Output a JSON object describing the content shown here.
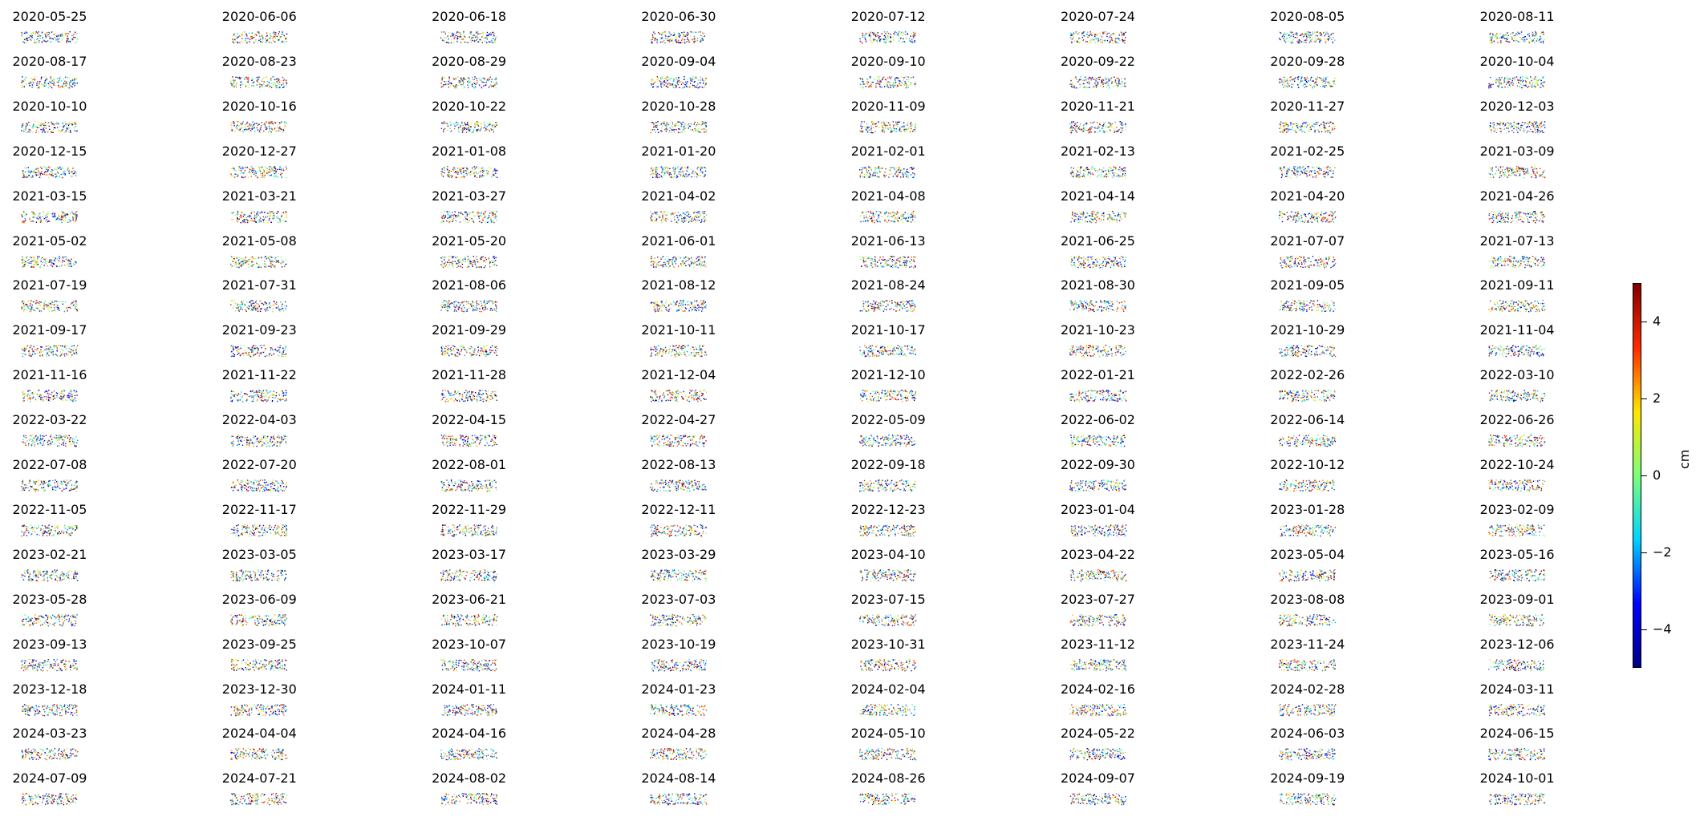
{
  "chart_data": {
    "type": "heatmap",
    "layout": "small-multiples",
    "columns": 8,
    "panel_titles": [
      "2020-05-25",
      "2020-06-06",
      "2020-06-18",
      "2020-06-30",
      "2020-07-12",
      "2020-07-24",
      "2020-08-05",
      "2020-08-11",
      "2020-08-17",
      "2020-08-23",
      "2020-08-29",
      "2020-09-04",
      "2020-09-10",
      "2020-09-22",
      "2020-09-28",
      "2020-10-04",
      "2020-10-10",
      "2020-10-16",
      "2020-10-22",
      "2020-10-28",
      "2020-11-09",
      "2020-11-21",
      "2020-11-27",
      "2020-12-03",
      "2020-12-15",
      "2020-12-27",
      "2021-01-08",
      "2021-01-20",
      "2021-02-01",
      "2021-02-13",
      "2021-02-25",
      "2021-03-09",
      "2021-03-15",
      "2021-03-21",
      "2021-03-27",
      "2021-04-02",
      "2021-04-08",
      "2021-04-14",
      "2021-04-20",
      "2021-04-26",
      "2021-05-02",
      "2021-05-08",
      "2021-05-20",
      "2021-06-01",
      "2021-06-13",
      "2021-06-25",
      "2021-07-07",
      "2021-07-13",
      "2021-07-19",
      "2021-07-31",
      "2021-08-06",
      "2021-08-12",
      "2021-08-24",
      "2021-08-30",
      "2021-09-05",
      "2021-09-11",
      "2021-09-17",
      "2021-09-23",
      "2021-09-29",
      "2021-10-11",
      "2021-10-17",
      "2021-10-23",
      "2021-10-29",
      "2021-11-04",
      "2021-11-16",
      "2021-11-22",
      "2021-11-28",
      "2021-12-04",
      "2021-12-10",
      "2022-01-21",
      "2022-02-26",
      "2022-03-10",
      "2022-03-22",
      "2022-04-03",
      "2022-04-15",
      "2022-04-27",
      "2022-05-09",
      "2022-06-02",
      "2022-06-14",
      "2022-06-26",
      "2022-07-08",
      "2022-07-20",
      "2022-08-01",
      "2022-08-13",
      "2022-09-18",
      "2022-09-30",
      "2022-10-12",
      "2022-10-24",
      "2022-11-05",
      "2022-11-17",
      "2022-11-29",
      "2022-12-11",
      "2022-12-23",
      "2023-01-04",
      "2023-01-28",
      "2023-02-09",
      "2023-02-21",
      "2023-03-05",
      "2023-03-17",
      "2023-03-29",
      "2023-04-10",
      "2023-04-22",
      "2023-05-04",
      "2023-05-16",
      "2023-05-28",
      "2023-06-09",
      "2023-06-21",
      "2023-07-03",
      "2023-07-15",
      "2023-07-27",
      "2023-08-08",
      "2023-09-01",
      "2023-09-13",
      "2023-09-25",
      "2023-10-07",
      "2023-10-19",
      "2023-10-31",
      "2023-11-12",
      "2023-11-24",
      "2023-12-06",
      "2023-12-18",
      "2023-12-30",
      "2024-01-11",
      "2024-01-23",
      "2024-02-04",
      "2024-02-16",
      "2024-02-28",
      "2024-03-11",
      "2024-03-23",
      "2024-04-04",
      "2024-04-16",
      "2024-04-28",
      "2024-05-10",
      "2024-05-22",
      "2024-06-03",
      "2024-06-15",
      "2024-07-09",
      "2024-07-21",
      "2024-08-02",
      "2024-08-14",
      "2024-08-26",
      "2024-09-07",
      "2024-09-19",
      "2024-10-01"
    ],
    "colorbar": {
      "label": "cm",
      "range": [
        -5,
        5
      ],
      "ticks": [
        4,
        2,
        0,
        -2,
        -4
      ],
      "tick_labels": [
        "4",
        "2",
        "0",
        "−2",
        "−4"
      ],
      "colormap": "jet",
      "colors": [
        "#00007f",
        "#0000ff",
        "#00d4ff",
        "#7cff79",
        "#ffe600",
        "#ff2a00",
        "#7f0000"
      ]
    },
    "grid": false,
    "axes_visible": false
  }
}
